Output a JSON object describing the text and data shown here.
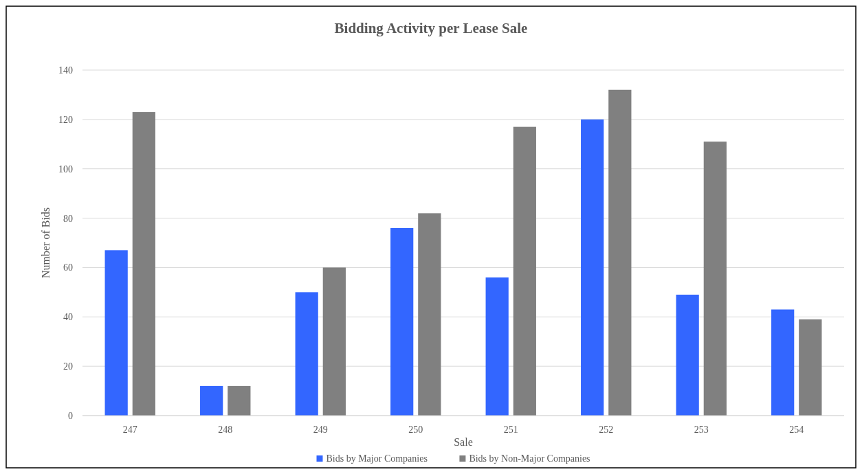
{
  "chart_data": {
    "type": "bar",
    "title": "Bidding Activity per Lease Sale",
    "xlabel": "Sale",
    "ylabel": "Number of Bids",
    "categories": [
      "247",
      "248",
      "249",
      "250",
      "251",
      "252",
      "253",
      "254"
    ],
    "series": [
      {
        "name": "Bids by Major Companies",
        "color": "#3366ff",
        "values": [
          67,
          12,
          50,
          76,
          56,
          120,
          49,
          43
        ]
      },
      {
        "name": "Bids by Non-Major Companies",
        "color": "#808080",
        "values": [
          123,
          12,
          60,
          82,
          117,
          132,
          111,
          39
        ]
      }
    ],
    "ylim": [
      0,
      140
    ],
    "yticks": [
      0,
      20,
      40,
      60,
      80,
      100,
      120,
      140
    ],
    "grid": "y",
    "legend": "bottom"
  }
}
